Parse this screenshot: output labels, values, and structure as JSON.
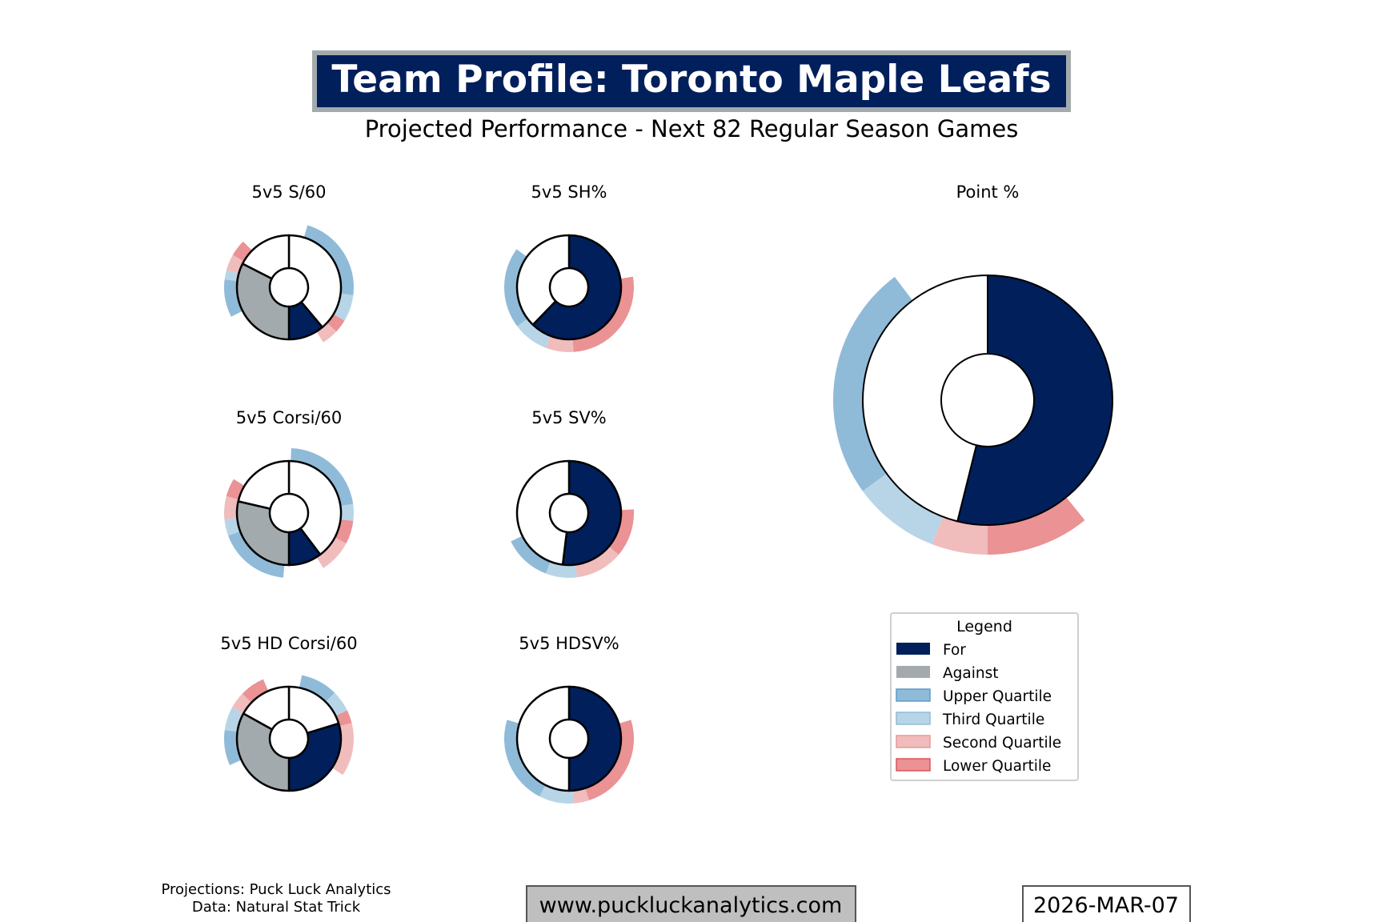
{
  "header": {
    "title": "Team Profile: Toronto Maple Leafs",
    "subtitle": "Projected Performance - Next 82 Regular Season Games"
  },
  "colors": {
    "for": "#001f5b",
    "against": "#a2aaad",
    "upper": "#8fbbd9",
    "third": "#b8d5e8",
    "second": "#f0bcbc",
    "lower": "#ea9294",
    "empty": "#ffffff"
  },
  "chart_data": [
    {
      "type": "pie",
      "title": "5v5 S/60",
      "slices": [
        {
          "series": "for",
          "start": 140,
          "end": 180
        },
        {
          "series": "against",
          "start": 180,
          "end": 297
        }
      ],
      "ring": [
        {
          "q": "upper",
          "start": 16.7,
          "end": 97
        },
        {
          "q": "third",
          "start": 97,
          "end": 121
        },
        {
          "q": "lower",
          "start": 121,
          "end": 133
        },
        {
          "q": "second",
          "start": 133,
          "end": 148
        },
        {
          "q": "upper",
          "start": 243,
          "end": 277
        },
        {
          "q": "third",
          "start": 277,
          "end": 285.5
        },
        {
          "q": "second",
          "start": 285.5,
          "end": 300
        },
        {
          "q": "lower",
          "start": 300,
          "end": 315
        }
      ]
    },
    {
      "type": "pie",
      "title": "5v5 SH%",
      "slices": [
        {
          "series": "for",
          "start": 0,
          "end": 224
        }
      ],
      "ring": [
        {
          "q": "lower",
          "start": 80.5,
          "end": 176
        },
        {
          "q": "second",
          "start": 176,
          "end": 201
        },
        {
          "q": "third",
          "start": 201,
          "end": 233
        },
        {
          "q": "upper",
          "start": 233,
          "end": 306
        }
      ]
    },
    {
      "type": "pie",
      "title": "5v5 Corsi/60",
      "slices": [
        {
          "series": "for",
          "start": 143,
          "end": 180
        },
        {
          "series": "against",
          "start": 180,
          "end": 283
        }
      ],
      "ring": [
        {
          "q": "upper",
          "start": 2,
          "end": 82
        },
        {
          "q": "third",
          "start": 82,
          "end": 97
        },
        {
          "q": "lower",
          "start": 97,
          "end": 118
        },
        {
          "q": "second",
          "start": 118,
          "end": 148
        },
        {
          "q": "upper",
          "start": 185,
          "end": 249.5
        },
        {
          "q": "third",
          "start": 249.5,
          "end": 264.5
        },
        {
          "q": "second",
          "start": 264.5,
          "end": 285
        },
        {
          "q": "lower",
          "start": 285,
          "end": 301.5
        }
      ]
    },
    {
      "type": "pie",
      "title": "5v5 SV%",
      "slices": [
        {
          "series": "for",
          "start": 0,
          "end": 187
        }
      ],
      "ring": [
        {
          "q": "lower",
          "start": 86.7,
          "end": 130
        },
        {
          "q": "second",
          "start": 130,
          "end": 173
        },
        {
          "q": "third",
          "start": 173,
          "end": 201
        },
        {
          "q": "upper",
          "start": 201,
          "end": 244
        }
      ]
    },
    {
      "type": "pie",
      "title": "5v5 HD Corsi/60",
      "slices": [
        {
          "series": "for",
          "start": 73,
          "end": 180
        },
        {
          "series": "against",
          "start": 180,
          "end": 299
        }
      ],
      "ring": [
        {
          "q": "upper",
          "start": 11.5,
          "end": 45
        },
        {
          "q": "third",
          "start": 45,
          "end": 64
        },
        {
          "q": "lower",
          "start": 64,
          "end": 76
        },
        {
          "q": "second",
          "start": 76,
          "end": 124
        },
        {
          "q": "upper",
          "start": 246,
          "end": 277.7
        },
        {
          "q": "third",
          "start": 277.7,
          "end": 299
        },
        {
          "q": "second",
          "start": 299,
          "end": 314
        },
        {
          "q": "lower",
          "start": 314,
          "end": 336.6
        }
      ]
    },
    {
      "type": "pie",
      "title": "5v5 HDSV%",
      "slices": [
        {
          "series": "for",
          "start": 0,
          "end": 180
        }
      ],
      "ring": [
        {
          "q": "lower",
          "start": 73,
          "end": 162
        },
        {
          "q": "second",
          "start": 162,
          "end": 176
        },
        {
          "q": "third",
          "start": 176,
          "end": 207
        },
        {
          "q": "upper",
          "start": 207,
          "end": 287
        }
      ]
    },
    {
      "type": "pie",
      "title": "Point %",
      "slices": [
        {
          "series": "for",
          "start": 0,
          "end": 194
        }
      ],
      "ring": [
        {
          "q": "lower",
          "start": 141,
          "end": 180
        },
        {
          "q": "second",
          "start": 180,
          "end": 201
        },
        {
          "q": "third",
          "start": 201,
          "end": 234
        },
        {
          "q": "upper",
          "start": 234,
          "end": 323
        }
      ]
    }
  ],
  "legend": {
    "title": "Legend",
    "items": [
      {
        "key": "for",
        "label": "For"
      },
      {
        "key": "against",
        "label": "Against"
      },
      {
        "key": "upper",
        "label": "Upper Quartile"
      },
      {
        "key": "third",
        "label": "Third Quartile"
      },
      {
        "key": "second",
        "label": "Second Quartile"
      },
      {
        "key": "lower",
        "label": "Lower Quartile"
      }
    ]
  },
  "footer": {
    "credits_line1": "Projections: Puck Luck Analytics",
    "credits_line2": "Data: Natural Stat Trick",
    "website": "www.puckluckanalytics.com",
    "date": "2026-MAR-07"
  }
}
